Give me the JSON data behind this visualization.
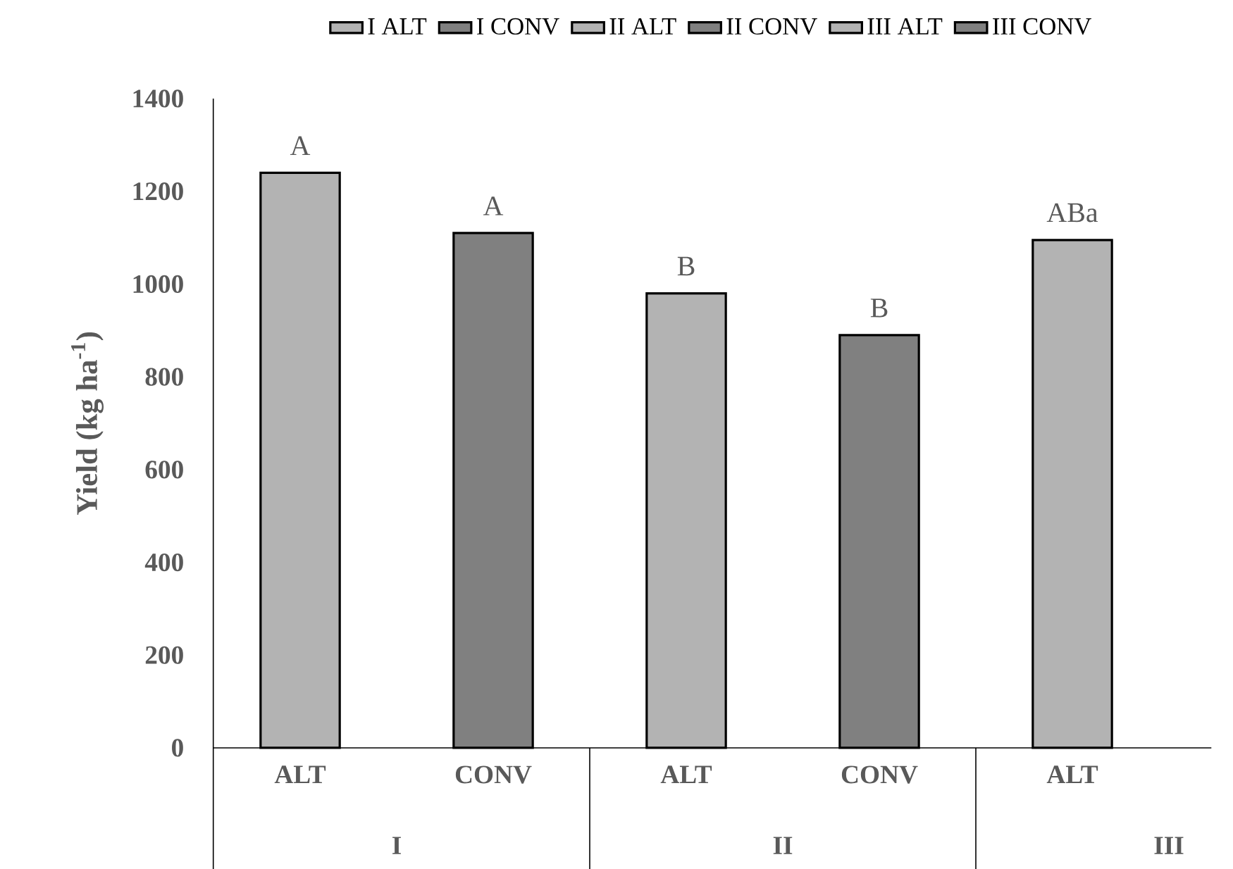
{
  "chart_data": {
    "type": "bar",
    "ylabel": "Yield (kg ha$^{-1}$)",
    "categories": [
      "ALT",
      "CONV",
      "ALT",
      "CONV",
      "ALT"
    ],
    "series": [
      {
        "name": "I ALT",
        "color": "#b3b3b3",
        "values": [
          1240,
          null,
          null,
          null,
          null
        ],
        "value_labels": [
          "A",
          null,
          null,
          null,
          null
        ]
      },
      {
        "name": "I CONV",
        "color": "#808080",
        "values": [
          null,
          1110,
          null,
          null,
          null
        ],
        "value_labels": [
          null,
          "A",
          null,
          null,
          null
        ]
      },
      {
        "name": "II ALT",
        "color": "#b3b3b3",
        "values": [
          null,
          null,
          980,
          null,
          null
        ],
        "value_labels": [
          null,
          null,
          "B",
          null,
          null
        ]
      },
      {
        "name": "II CONV",
        "color": "#808080",
        "values": [
          null,
          null,
          null,
          890,
          null
        ],
        "value_labels": [
          null,
          null,
          null,
          "B",
          null
        ]
      },
      {
        "name": "III ALT",
        "color": "#b3b3b3",
        "values": [
          null,
          null,
          null,
          null,
          1095
        ],
        "value_labels": [
          null,
          null,
          null,
          null,
          "ABa"
        ]
      },
      {
        "name": "III CONV",
        "color": "#808080",
        "values": [
          null,
          null,
          null,
          null,
          null
        ]
      }
    ],
    "annotations": [
      "I",
      "II",
      "III"
    ],
    "ylim": [
      0,
      1400
    ],
    "yticks": [
      0,
      200,
      400,
      600,
      800,
      1000,
      1200,
      1400
    ],
    "legend": "top",
    "grid": false
  }
}
